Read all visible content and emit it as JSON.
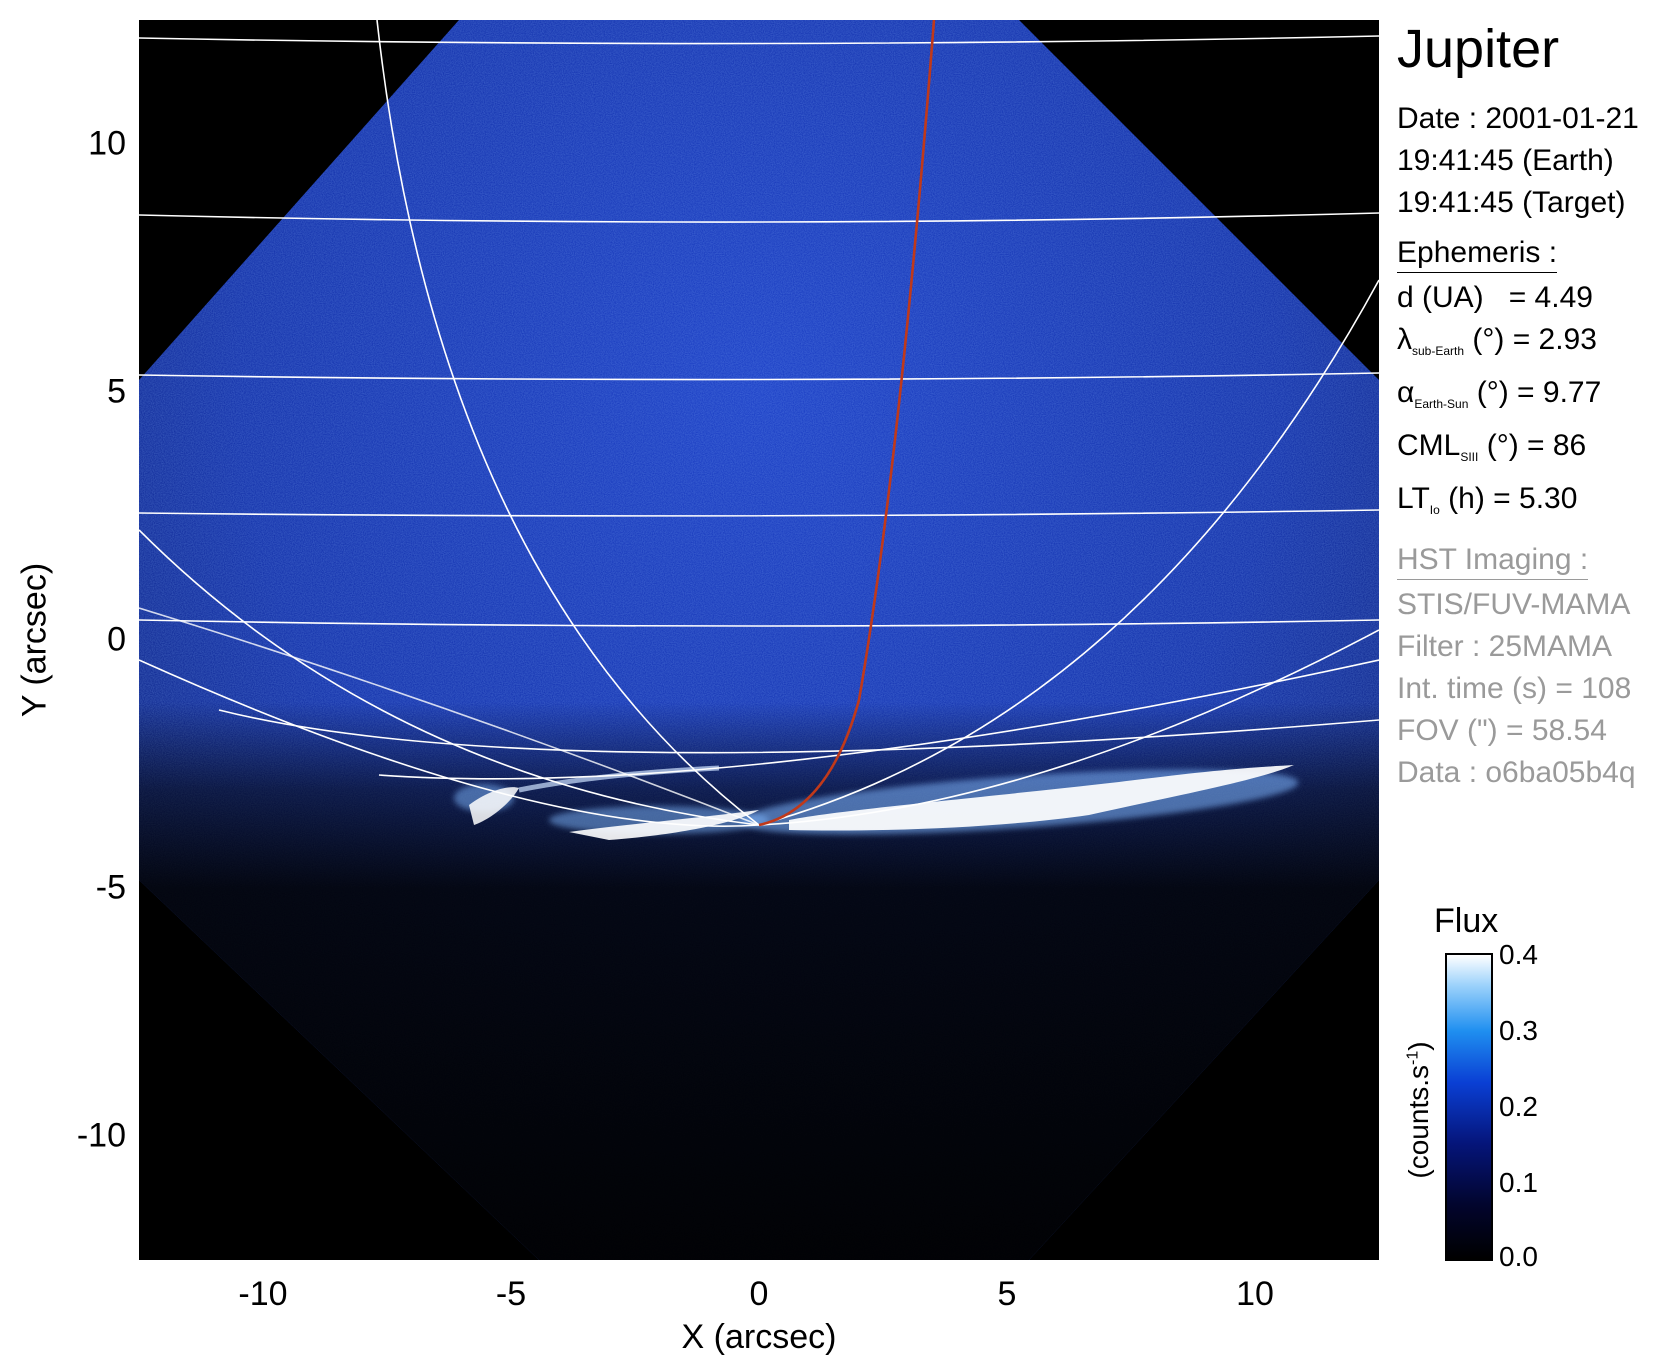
{
  "figure": {
    "target": "Jupiter",
    "date_line": "Date : 2001-01-21",
    "time_earth": "19:41:45 (Earth)",
    "time_target": "19:41:45 (Target)"
  },
  "ephemeris": {
    "heading": "Ephemeris :",
    "d_label": "d (UA)",
    "d_value": "= 4.49",
    "lambda_symbol": "λ",
    "lambda_sub": "sub-Earth",
    "lambda_value": "(°) = 2.93",
    "alpha_symbol": "α",
    "alpha_sub": "Earth-Sun",
    "alpha_value": "(°) = 9.77",
    "cml_symbol": "CML",
    "cml_sub": "SIII",
    "cml_value": "(°) = 86",
    "lt_symbol": "LT",
    "lt_sub": "Io",
    "lt_value": "(h) = 5.30"
  },
  "imaging": {
    "heading": "HST Imaging :",
    "instrument": "STIS/FUV-MAMA",
    "filter": "Filter : 25MAMA",
    "int_time": "Int. time (s) = 108",
    "fov": "FOV (\") = 58.54",
    "data": "Data : o6ba05b4q"
  },
  "axes": {
    "x_label": "X (arcsec)",
    "y_label": "Y (arcsec)",
    "x_ticks": [
      "-10",
      "-5",
      "0",
      "5",
      "10"
    ],
    "y_ticks": [
      "10",
      "5",
      "0",
      "-5",
      "-10"
    ]
  },
  "colorbar": {
    "title": "Flux",
    "unit": "(counts.s",
    "unit_sup": "-1",
    "unit_end": ")",
    "ticks": [
      "0.4",
      "0.3",
      "0.2",
      "0.1",
      "0.0"
    ]
  },
  "colors": {
    "background": "#000000",
    "disk": "#0b2aa8",
    "grid": "#ffffff",
    "io_footprint": "#c0391a"
  }
}
